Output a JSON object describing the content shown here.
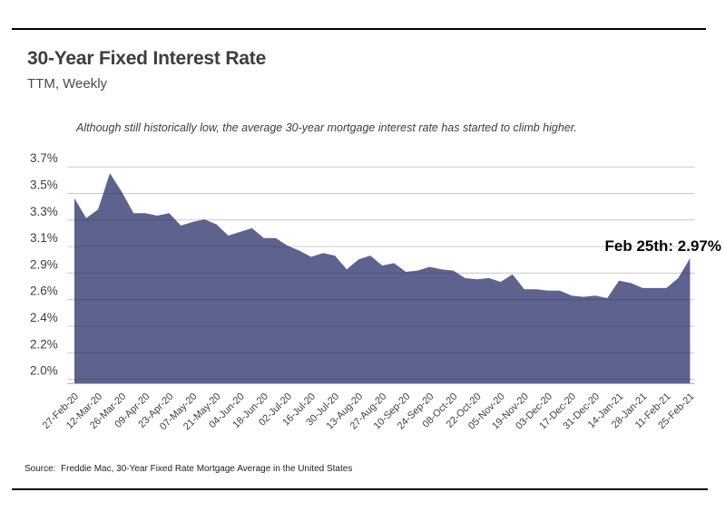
{
  "header": {
    "title": "30-Year Fixed Interest Rate",
    "subtitle": "TTM, Weekly"
  },
  "note": "Although still historically low, the average 30-year mortgage interest rate has started to climb higher.",
  "callout": "Feb 25th: 2.97%",
  "source": "Source:  Freddie Mac, 30-Year Fixed Rate Mortgage Average in the United States",
  "colors": {
    "area_fill": "#5d638e",
    "gridline": "#c9c9c9",
    "axis_line": "#b5b5b5",
    "rule": "#000000",
    "label_text": "#3f3f3f",
    "callout_text": "#050505"
  },
  "chart_data": {
    "type": "area",
    "title": "30-Year Fixed Interest Rate",
    "subtitle": "TTM, Weekly",
    "ylabel": "",
    "xlabel": "",
    "grid": true,
    "legend": "none",
    "x": [
      "27-Feb-20",
      "05-Mar-20",
      "12-Mar-20",
      "19-Mar-20",
      "26-Mar-20",
      "02-Apr-20",
      "09-Apr-20",
      "16-Apr-20",
      "23-Apr-20",
      "30-Apr-20",
      "07-May-20",
      "14-May-20",
      "21-May-20",
      "28-May-20",
      "04-Jun-20",
      "11-Jun-20",
      "18-Jun-20",
      "25-Jun-20",
      "02-Jul-20",
      "09-Jul-20",
      "16-Jul-20",
      "23-Jul-20",
      "30-Jul-20",
      "06-Aug-20",
      "13-Aug-20",
      "20-Aug-20",
      "27-Aug-20",
      "03-Sep-20",
      "10-Sep-20",
      "17-Sep-20",
      "24-Sep-20",
      "01-Oct-20",
      "08-Oct-20",
      "15-Oct-20",
      "22-Oct-20",
      "29-Oct-20",
      "05-Nov-20",
      "12-Nov-20",
      "19-Nov-20",
      "26-Nov-20",
      "03-Dec-20",
      "10-Dec-20",
      "17-Dec-20",
      "24-Dec-20",
      "31-Dec-20",
      "07-Jan-21",
      "14-Jan-21",
      "21-Jan-21",
      "28-Jan-21",
      "04-Feb-21",
      "11-Feb-21",
      "18-Feb-21",
      "25-Feb-21"
    ],
    "values": [
      3.45,
      3.29,
      3.36,
      3.65,
      3.5,
      3.33,
      3.33,
      3.31,
      3.33,
      3.23,
      3.26,
      3.28,
      3.24,
      3.15,
      3.18,
      3.21,
      3.13,
      3.13,
      3.07,
      3.03,
      2.98,
      3.01,
      2.99,
      2.88,
      2.96,
      2.99,
      2.91,
      2.93,
      2.86,
      2.87,
      2.9,
      2.88,
      2.87,
      2.81,
      2.8,
      2.81,
      2.78,
      2.84,
      2.72,
      2.72,
      2.71,
      2.71,
      2.67,
      2.66,
      2.67,
      2.65,
      2.79,
      2.77,
      2.73,
      2.73,
      2.73,
      2.81,
      2.97
    ],
    "x_tick_labels": [
      "27-Feb-20",
      "12-Mar-20",
      "26-Mar-20",
      "09-Apr-20",
      "23-Apr-20",
      "07-May-20",
      "21-May-20",
      "04-Jun-20",
      "18-Jun-20",
      "02-Jul-20",
      "16-Jul-20",
      "30-Jul-20",
      "13-Aug-20",
      "27-Aug-20",
      "10-Sep-20",
      "24-Sep-20",
      "08-Oct-20",
      "22-Oct-20",
      "05-Nov-20",
      "19-Nov-20",
      "03-Dec-20",
      "17-Dec-20",
      "31-Dec-20",
      "14-Jan-21",
      "28-Jan-21",
      "11-Feb-21",
      "25-Feb-21"
    ],
    "x_tick_every": 2,
    "y_tick_labels": [
      "3.7%",
      "3.5%",
      "3.3%",
      "3.1%",
      "2.9%",
      "2.6%",
      "2.4%",
      "2.2%",
      "2.0%"
    ],
    "y_top_value": 3.7,
    "y_bottom_value": 2.0,
    "annotation": {
      "label": "Feb 25th: 2.97%",
      "x": "25-Feb-21",
      "value": 2.97
    }
  }
}
